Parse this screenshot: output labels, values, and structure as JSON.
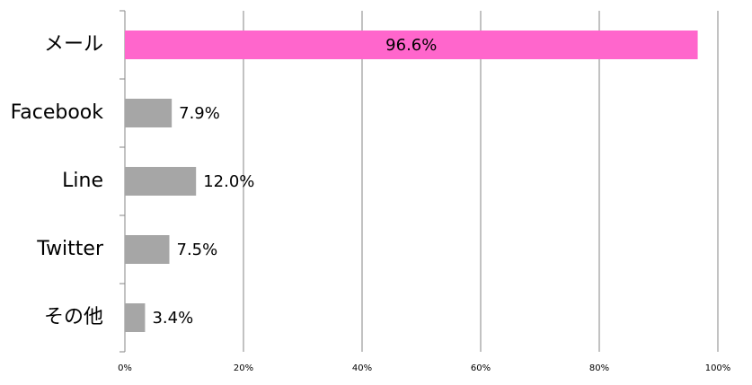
{
  "chart_data": {
    "type": "bar",
    "orientation": "horizontal",
    "categories": [
      "メール",
      "Facebook",
      "Line",
      "Twitter",
      "その他"
    ],
    "values": [
      96.6,
      7.9,
      12.0,
      7.5,
      3.4
    ],
    "value_labels": [
      "96.6%",
      "7.9%",
      "12.0%",
      "7.5%",
      "3.4%"
    ],
    "colors": [
      "#ff66cc",
      "#a6a6a6",
      "#a6a6a6",
      "#a6a6a6",
      "#a6a6a6"
    ],
    "xlim": [
      0,
      100
    ],
    "xticks": [
      {
        "value": 0,
        "label": "0%"
      },
      {
        "value": 20,
        "label": "20%"
      },
      {
        "value": 40,
        "label": "40%"
      },
      {
        "value": 60,
        "label": "60%"
      },
      {
        "value": 80,
        "label": "80%"
      },
      {
        "value": 100,
        "label": "100%"
      }
    ],
    "grid": true
  }
}
